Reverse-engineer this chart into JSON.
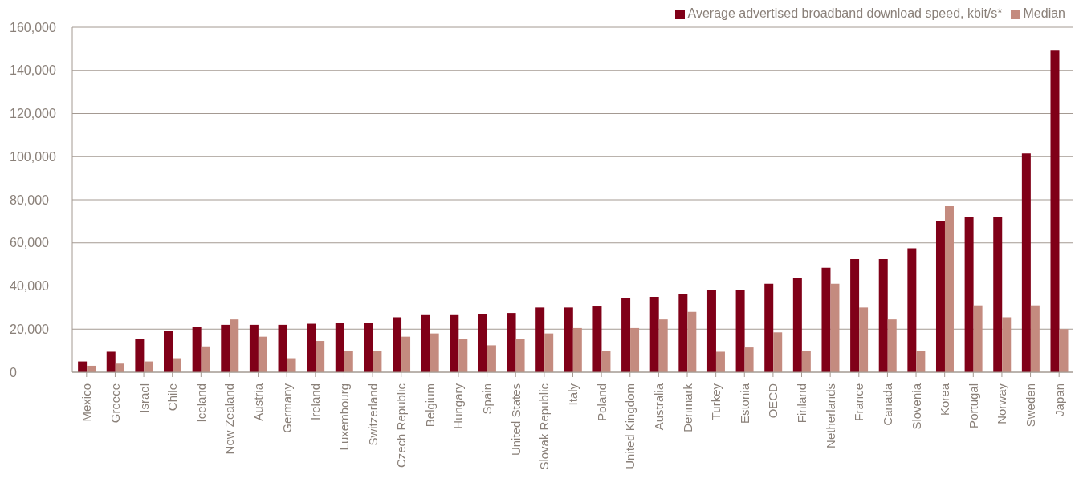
{
  "chart_data": {
    "type": "bar",
    "categories": [
      "Mexico",
      "Greece",
      "Israel",
      "Chile",
      "Iceland",
      "New Zealand",
      "Austria",
      "Germany",
      "Ireland",
      "Luxembourg",
      "Switzerland",
      "Czech Republic",
      "Belgium",
      "Hungary",
      "Spain",
      "United States",
      "Slovak Republic",
      "Italy",
      "Poland",
      "United Kingdom",
      "Australia",
      "Denmark",
      "Turkey",
      "Estonia",
      "OECD",
      "Finland",
      "Netherlands",
      "France",
      "Canada",
      "Slovenia",
      "Korea",
      "Portugal",
      "Norway",
      "Sweden",
      "Japan"
    ],
    "series": [
      {
        "name": "Average advertised broadband download speed, kbit/s*",
        "color": "#800018",
        "values": [
          5000,
          9500,
          15500,
          19000,
          21000,
          22000,
          22000,
          22000,
          22500,
          23000,
          23000,
          25500,
          26500,
          26500,
          27000,
          27500,
          30000,
          30000,
          30500,
          34500,
          35000,
          36500,
          38000,
          38000,
          41000,
          43500,
          48500,
          52500,
          52500,
          57500,
          70000,
          72000,
          72000,
          101500,
          149500
        ]
      },
      {
        "name": "Median",
        "color": "#c48b7f",
        "values": [
          3000,
          4000,
          5000,
          6500,
          12000,
          24500,
          16500,
          6500,
          14500,
          10000,
          10000,
          16500,
          18000,
          15500,
          12500,
          15500,
          18000,
          20500,
          10000,
          20500,
          24500,
          28000,
          9500,
          11500,
          18500,
          10000,
          41000,
          30000,
          24500,
          10000,
          77000,
          31000,
          25500,
          31000,
          20000
        ]
      }
    ],
    "ylim": [
      0,
      160000
    ],
    "yticks": [
      {
        "value": 0,
        "label": "0"
      },
      {
        "value": 20000,
        "label": "20,000"
      },
      {
        "value": 40000,
        "label": "40,000"
      },
      {
        "value": 60000,
        "label": "60,000"
      },
      {
        "value": 80000,
        "label": "80,000"
      },
      {
        "value": 100000,
        "label": "100,000"
      },
      {
        "value": 120000,
        "label": "120,000"
      },
      {
        "value": 140000,
        "label": "140,000"
      },
      {
        "value": 160000,
        "label": "160,000"
      }
    ],
    "grid": "y",
    "legend": "top right"
  }
}
